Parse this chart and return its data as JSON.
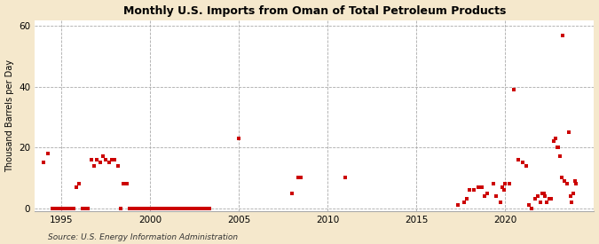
{
  "title": "Monthly U.S. Imports from Oman of Total Petroleum Products",
  "ylabel": "Thousand Barrels per Day",
  "source": "Source: U.S. Energy Information Administration",
  "fig_background_color": "#f5e8cc",
  "plot_background_color": "#ffffff",
  "marker_color": "#cc0000",
  "ylim": [
    -1,
    62
  ],
  "yticks": [
    0,
    20,
    40,
    60
  ],
  "xlim": [
    1993.5,
    2025.0
  ],
  "xticks": [
    1995,
    2000,
    2005,
    2010,
    2015,
    2020
  ],
  "data_points": [
    [
      1994.0,
      15
    ],
    [
      1994.25,
      18
    ],
    [
      1994.5,
      0
    ],
    [
      1994.67,
      0
    ],
    [
      1994.83,
      0
    ],
    [
      1995.0,
      0
    ],
    [
      1995.17,
      0
    ],
    [
      1995.33,
      0
    ],
    [
      1995.5,
      0
    ],
    [
      1995.67,
      0
    ],
    [
      1995.83,
      7
    ],
    [
      1996.0,
      8
    ],
    [
      1996.17,
      0
    ],
    [
      1996.33,
      0
    ],
    [
      1996.5,
      0
    ],
    [
      1996.67,
      16
    ],
    [
      1996.83,
      14
    ],
    [
      1997.0,
      16
    ],
    [
      1997.17,
      15
    ],
    [
      1997.33,
      17
    ],
    [
      1997.5,
      16
    ],
    [
      1997.67,
      15
    ],
    [
      1997.83,
      16
    ],
    [
      1998.0,
      16
    ],
    [
      1998.17,
      14
    ],
    [
      1998.33,
      0
    ],
    [
      1998.5,
      8
    ],
    [
      1998.67,
      8
    ],
    [
      1998.83,
      0
    ],
    [
      1999.0,
      0
    ],
    [
      1999.17,
      0
    ],
    [
      1999.33,
      0
    ],
    [
      1999.5,
      0
    ],
    [
      1999.67,
      0
    ],
    [
      1999.83,
      0
    ],
    [
      2000.0,
      0
    ],
    [
      2000.17,
      0
    ],
    [
      2000.33,
      0
    ],
    [
      2000.5,
      0
    ],
    [
      2000.67,
      0
    ],
    [
      2000.83,
      0
    ],
    [
      2001.0,
      0
    ],
    [
      2001.17,
      0
    ],
    [
      2001.33,
      0
    ],
    [
      2001.5,
      0
    ],
    [
      2001.67,
      0
    ],
    [
      2001.83,
      0
    ],
    [
      2002.0,
      0
    ],
    [
      2002.17,
      0
    ],
    [
      2002.33,
      0
    ],
    [
      2002.5,
      0
    ],
    [
      2002.67,
      0
    ],
    [
      2002.83,
      0
    ],
    [
      2003.0,
      0
    ],
    [
      2003.17,
      0
    ],
    [
      2003.33,
      0
    ],
    [
      2005.0,
      23
    ],
    [
      2008.0,
      5
    ],
    [
      2008.33,
      10
    ],
    [
      2008.5,
      10
    ],
    [
      2011.0,
      10
    ],
    [
      2017.33,
      1
    ],
    [
      2017.67,
      2
    ],
    [
      2017.83,
      3
    ],
    [
      2018.0,
      6
    ],
    [
      2018.25,
      6
    ],
    [
      2018.5,
      7
    ],
    [
      2018.67,
      7
    ],
    [
      2018.83,
      4
    ],
    [
      2019.0,
      5
    ],
    [
      2019.33,
      8
    ],
    [
      2019.5,
      4
    ],
    [
      2019.75,
      2
    ],
    [
      2019.83,
      7
    ],
    [
      2019.92,
      6
    ],
    [
      2020.0,
      8
    ],
    [
      2020.25,
      8
    ],
    [
      2020.5,
      39
    ],
    [
      2020.75,
      16
    ],
    [
      2021.0,
      15
    ],
    [
      2021.17,
      14
    ],
    [
      2021.33,
      1
    ],
    [
      2021.5,
      0
    ],
    [
      2021.67,
      3
    ],
    [
      2021.83,
      4
    ],
    [
      2022.0,
      2
    ],
    [
      2022.08,
      5
    ],
    [
      2022.17,
      5
    ],
    [
      2022.25,
      4
    ],
    [
      2022.33,
      2
    ],
    [
      2022.5,
      3
    ],
    [
      2022.58,
      3
    ],
    [
      2022.75,
      22
    ],
    [
      2022.83,
      23
    ],
    [
      2022.92,
      20
    ],
    [
      2023.0,
      20
    ],
    [
      2023.08,
      17
    ],
    [
      2023.17,
      10
    ],
    [
      2023.25,
      57
    ],
    [
      2023.33,
      9
    ],
    [
      2023.5,
      8
    ],
    [
      2023.58,
      25
    ],
    [
      2023.67,
      4
    ],
    [
      2023.75,
      2
    ],
    [
      2023.83,
      5
    ],
    [
      2023.92,
      9
    ],
    [
      2024.0,
      8
    ]
  ]
}
